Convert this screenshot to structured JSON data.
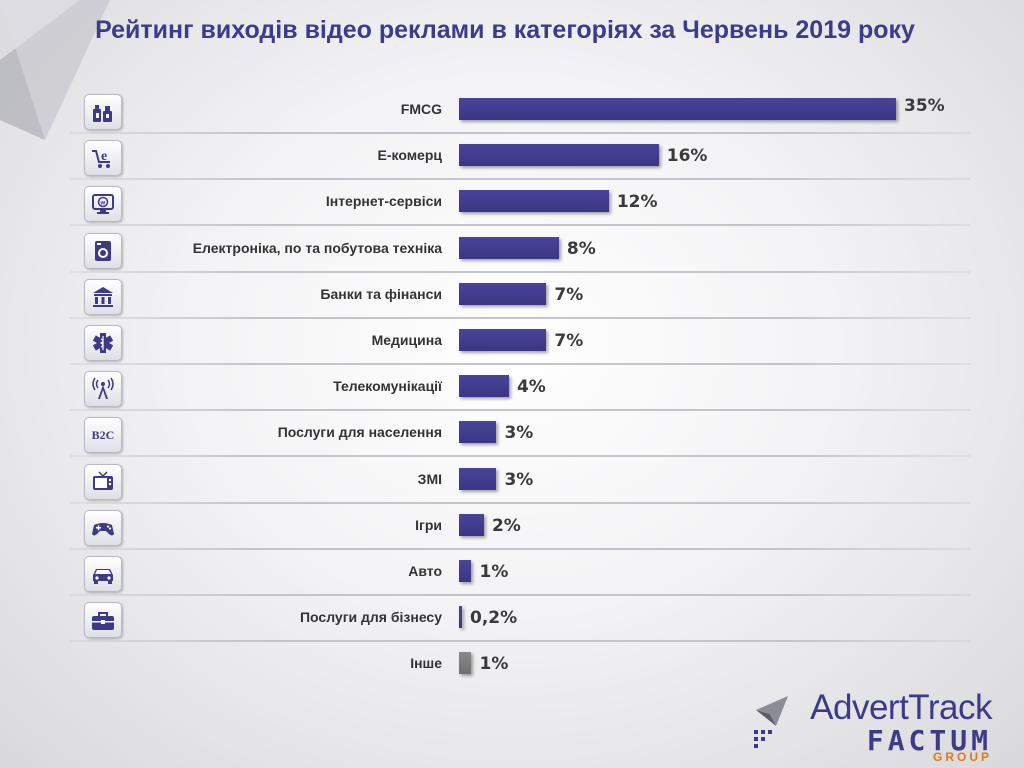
{
  "title": "Рейтинг виходів відео реклами в категоріях за Червень 2019 року",
  "chart_data": {
    "type": "bar",
    "orientation": "horizontal",
    "title": "Рейтинг виходів відео реклами в категоріях за Червень 2019 року",
    "categories": [
      "FMCG",
      "E-комерц",
      "Інтернет-сервіси",
      "Електроніка, по та побутова техніка",
      "Банки та фінанси",
      "Медицина",
      "Телекомунікації",
      "Послуги для населення",
      "ЗМІ",
      "Ігри",
      "Авто",
      "Послуги для бізнесу",
      "Інше"
    ],
    "values": [
      35,
      16,
      12,
      8,
      7,
      7,
      4,
      3,
      3,
      2,
      1,
      0.2,
      1
    ],
    "value_labels": [
      "35%",
      "16%",
      "12%",
      "8%",
      "7%",
      "7%",
      "4%",
      "3%",
      "3%",
      "2%",
      "1%",
      "0,2%",
      "1%"
    ],
    "icons": [
      "household-products-icon",
      "ecommerce-cart-icon",
      "internet-monitor-icon",
      "washing-machine-icon",
      "bank-icon",
      "medical-star-icon",
      "telecom-tower-icon",
      "b2c-icon",
      "tv-icon",
      "gamepad-icon",
      "car-icon",
      "briefcase-icon",
      ""
    ],
    "icon_texts": [
      "",
      "",
      "",
      "",
      "",
      "",
      "",
      "B2C",
      "",
      "",
      "",
      "",
      ""
    ],
    "colors": {
      "bar": "#3f3a8a",
      "other_bar": "#7a7a7a",
      "title": "#3e3a8c"
    },
    "xlim": [
      0,
      35
    ],
    "grid": false,
    "legend": "none"
  },
  "logo": {
    "line1": "AdvertTrack",
    "line2": "FACTUM",
    "line3": "GROUP"
  }
}
